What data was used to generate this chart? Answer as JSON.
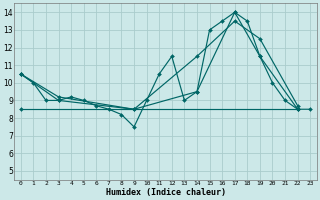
{
  "xlabel": "Humidex (Indice chaleur)",
  "xlim": [
    -0.5,
    23.5
  ],
  "ylim": [
    4.5,
    14.5
  ],
  "xticks": [
    0,
    1,
    2,
    3,
    4,
    5,
    6,
    7,
    8,
    9,
    10,
    11,
    12,
    13,
    14,
    15,
    16,
    17,
    18,
    19,
    20,
    21,
    22,
    23
  ],
  "yticks": [
    5,
    6,
    7,
    8,
    9,
    10,
    11,
    12,
    13,
    14
  ],
  "bg_color": "#cce8e8",
  "grid_color": "#aacccc",
  "line_color": "#006666",
  "series": [
    {
      "x": [
        0,
        1,
        2,
        3,
        4,
        5,
        6,
        7,
        8,
        9,
        10,
        11,
        12,
        13,
        14,
        15,
        16,
        17,
        18,
        19,
        20,
        21,
        22,
        23
      ],
      "y": [
        10.5,
        10.0,
        9.0,
        9.0,
        9.2,
        9.0,
        8.7,
        8.5,
        8.2,
        7.5,
        9.0,
        10.5,
        11.5,
        9.0,
        9.5,
        13.0,
        13.5,
        14.0,
        13.5,
        11.5,
        10.0,
        9.0,
        8.5,
        8.5
      ]
    },
    {
      "x": [
        0,
        3,
        9,
        14,
        17,
        19,
        22
      ],
      "y": [
        10.5,
        9.0,
        8.5,
        9.5,
        14.0,
        11.5,
        8.5
      ]
    },
    {
      "x": [
        0,
        3,
        9,
        14,
        17,
        19,
        22
      ],
      "y": [
        10.5,
        9.2,
        8.5,
        11.5,
        13.5,
        12.5,
        8.7
      ]
    },
    {
      "x": [
        0,
        22
      ],
      "y": [
        8.5,
        8.5
      ]
    }
  ]
}
